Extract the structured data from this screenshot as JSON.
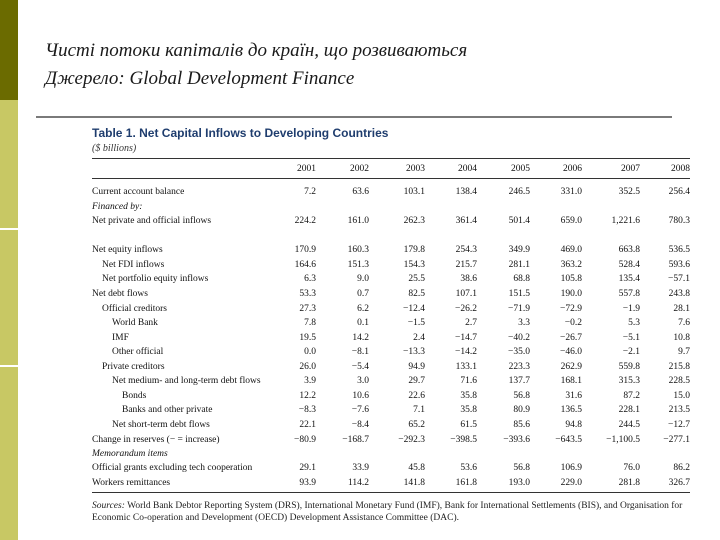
{
  "slide": {
    "title_line1": "Чисті потоки капіталів до країн, що розвиваються",
    "title_line2": "Джерело: Global Development Finance"
  },
  "table": {
    "title": "Table 1. Net Capital Inflows to Developing Countries",
    "unit": "($ billions)",
    "years": [
      "2001",
      "2002",
      "2003",
      "2004",
      "2005",
      "2006",
      "2007",
      "2008"
    ],
    "rows": [
      {
        "label": "Current account balance",
        "indent": 0,
        "values": [
          "7.2",
          "63.6",
          "103.1",
          "138.4",
          "246.5",
          "331.0",
          "352.5",
          "256.4"
        ]
      },
      {
        "label": "Financed by:",
        "indent": 0,
        "italic": true,
        "values": []
      },
      {
        "label": "Net private and official inflows",
        "indent": 0,
        "values": [
          "224.2",
          "161.0",
          "262.3",
          "361.4",
          "501.4",
          "659.0",
          "1,221.6",
          "780.3"
        ]
      },
      {
        "label": "Net equity inflows",
        "indent": 0,
        "values": [
          "170.9",
          "160.3",
          "179.8",
          "254.3",
          "349.9",
          "469.0",
          "663.8",
          "536.5"
        ]
      },
      {
        "label": "Net FDI inflows",
        "indent": 1,
        "values": [
          "164.6",
          "151.3",
          "154.3",
          "215.7",
          "281.1",
          "363.2",
          "528.4",
          "593.6"
        ]
      },
      {
        "label": "Net portfolio equity inflows",
        "indent": 1,
        "values": [
          "6.3",
          "9.0",
          "25.5",
          "38.6",
          "68.8",
          "105.8",
          "135.4",
          "−57.1"
        ]
      },
      {
        "label": "Net debt flows",
        "indent": 0,
        "values": [
          "53.3",
          "0.7",
          "82.5",
          "107.1",
          "151.5",
          "190.0",
          "557.8",
          "243.8"
        ]
      },
      {
        "label": "Official creditors",
        "indent": 1,
        "values": [
          "27.3",
          "6.2",
          "−12.4",
          "−26.2",
          "−71.9",
          "−72.9",
          "−1.9",
          "28.1"
        ]
      },
      {
        "label": "World Bank",
        "indent": 2,
        "values": [
          "7.8",
          "0.1",
          "−1.5",
          "2.7",
          "3.3",
          "−0.2",
          "5.3",
          "7.6"
        ]
      },
      {
        "label": "IMF",
        "indent": 2,
        "values": [
          "19.5",
          "14.2",
          "2.4",
          "−14.7",
          "−40.2",
          "−26.7",
          "−5.1",
          "10.8"
        ]
      },
      {
        "label": "Other official",
        "indent": 2,
        "values": [
          "0.0",
          "−8.1",
          "−13.3",
          "−14.2",
          "−35.0",
          "−46.0",
          "−2.1",
          "9.7"
        ]
      },
      {
        "label": "Private creditors",
        "indent": 1,
        "values": [
          "26.0",
          "−5.4",
          "94.9",
          "133.1",
          "223.3",
          "262.9",
          "559.8",
          "215.8"
        ]
      },
      {
        "label": "Net medium- and long-term debt flows",
        "indent": 2,
        "values": [
          "3.9",
          "3.0",
          "29.7",
          "71.6",
          "137.7",
          "168.1",
          "315.3",
          "228.5"
        ]
      },
      {
        "label": "Bonds",
        "indent": 3,
        "values": [
          "12.2",
          "10.6",
          "22.6",
          "35.8",
          "56.8",
          "31.6",
          "87.2",
          "15.0"
        ]
      },
      {
        "label": "Banks and other private",
        "indent": 3,
        "values": [
          "−8.3",
          "−7.6",
          "7.1",
          "35.8",
          "80.9",
          "136.5",
          "228.1",
          "213.5"
        ]
      },
      {
        "label": "Net short-term debt flows",
        "indent": 2,
        "values": [
          "22.1",
          "−8.4",
          "65.2",
          "61.5",
          "85.6",
          "94.8",
          "244.5",
          "−12.7"
        ]
      },
      {
        "label": "Change in reserves (− = increase)",
        "indent": 0,
        "values": [
          "−80.9",
          "−168.7",
          "−292.3",
          "−398.5",
          "−393.6",
          "−643.5",
          "−1,100.5",
          "−277.1"
        ]
      },
      {
        "label": "Memorandum items",
        "indent": 0,
        "italic": true,
        "values": []
      },
      {
        "label": "Official grants excluding tech cooperation",
        "indent": 0,
        "values": [
          "29.1",
          "33.9",
          "45.8",
          "53.6",
          "56.8",
          "106.9",
          "76.0",
          "86.2"
        ]
      },
      {
        "label": "Workers remittances",
        "indent": 0,
        "values": [
          "93.9",
          "114.2",
          "141.8",
          "161.8",
          "193.0",
          "229.0",
          "281.8",
          "326.7"
        ]
      }
    ],
    "sources_lead": "Sources:",
    "sources_text": "World Bank Debtor Reporting System (DRS), International Monetary Fund (IMF), Bank for International Settlements (BIS), and Organisation for Economic Co-operation and Development (OECD) Development Assistance Committee (DAC)."
  }
}
